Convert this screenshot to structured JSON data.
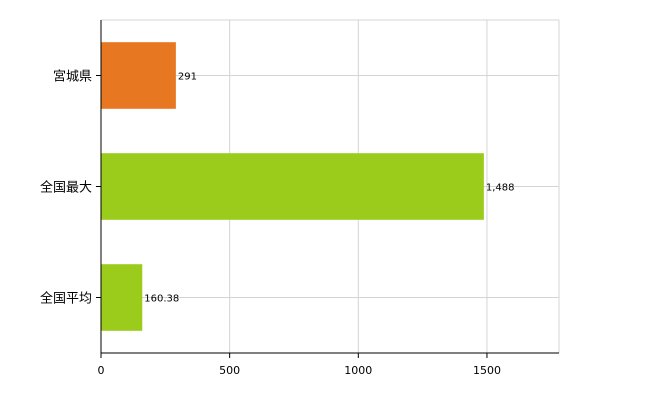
{
  "chart_data": {
    "type": "bar",
    "orientation": "horizontal",
    "categories": [
      "宮城県",
      "全国最大",
      "全国平均"
    ],
    "values": [
      291,
      1488,
      160.38
    ],
    "data_labels": [
      "291",
      "1,488",
      "160.38"
    ],
    "bar_colors": [
      "#e87722",
      "#9bcc1c",
      "#9bcc1c"
    ],
    "xlim": [
      0,
      1780
    ],
    "xticks": [
      0,
      500,
      1000,
      1500
    ],
    "xtick_labels": [
      "0",
      "500",
      "1000",
      "1500"
    ],
    "grid": true,
    "title": "",
    "xlabel": "",
    "ylabel": ""
  }
}
